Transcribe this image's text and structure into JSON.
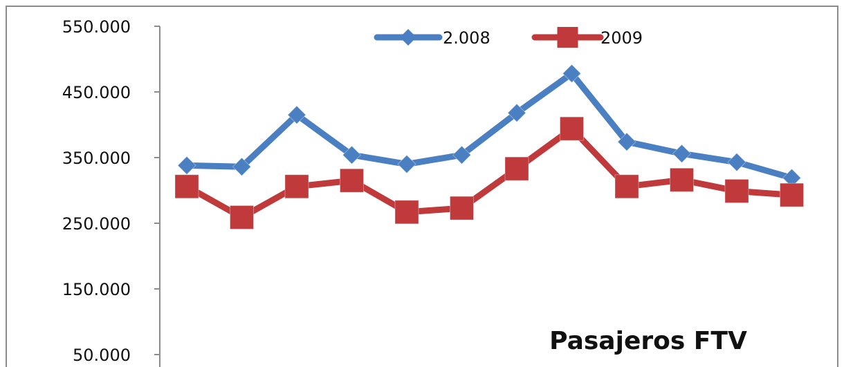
{
  "chart_data": {
    "type": "line",
    "title": "Pasajeros FTV",
    "xlabel": "",
    "ylabel": "",
    "ylim": [
      50000,
      550000
    ],
    "y_ticks": [
      50000,
      150000,
      250000,
      350000,
      450000,
      550000
    ],
    "y_tick_labels": [
      "50.000",
      "150.000",
      "250.000",
      "350.000",
      "450.000",
      "550.000"
    ],
    "x": [
      1,
      2,
      3,
      4,
      5,
      6,
      7,
      8,
      9,
      10,
      11,
      12
    ],
    "grid": false,
    "legend": "top-center",
    "series": [
      {
        "name": "2.008",
        "color": "#4a7fc1",
        "marker": "diamond",
        "values": [
          338000,
          336000,
          415000,
          354000,
          340000,
          354000,
          418000,
          478000,
          374000,
          356000,
          343000,
          319000
        ]
      },
      {
        "name": "2009",
        "color": "#c0393b",
        "marker": "square",
        "values": [
          306000,
          259000,
          306000,
          315000,
          267000,
          273000,
          333000,
          394000,
          306000,
          316000,
          299000,
          293000
        ]
      }
    ]
  }
}
